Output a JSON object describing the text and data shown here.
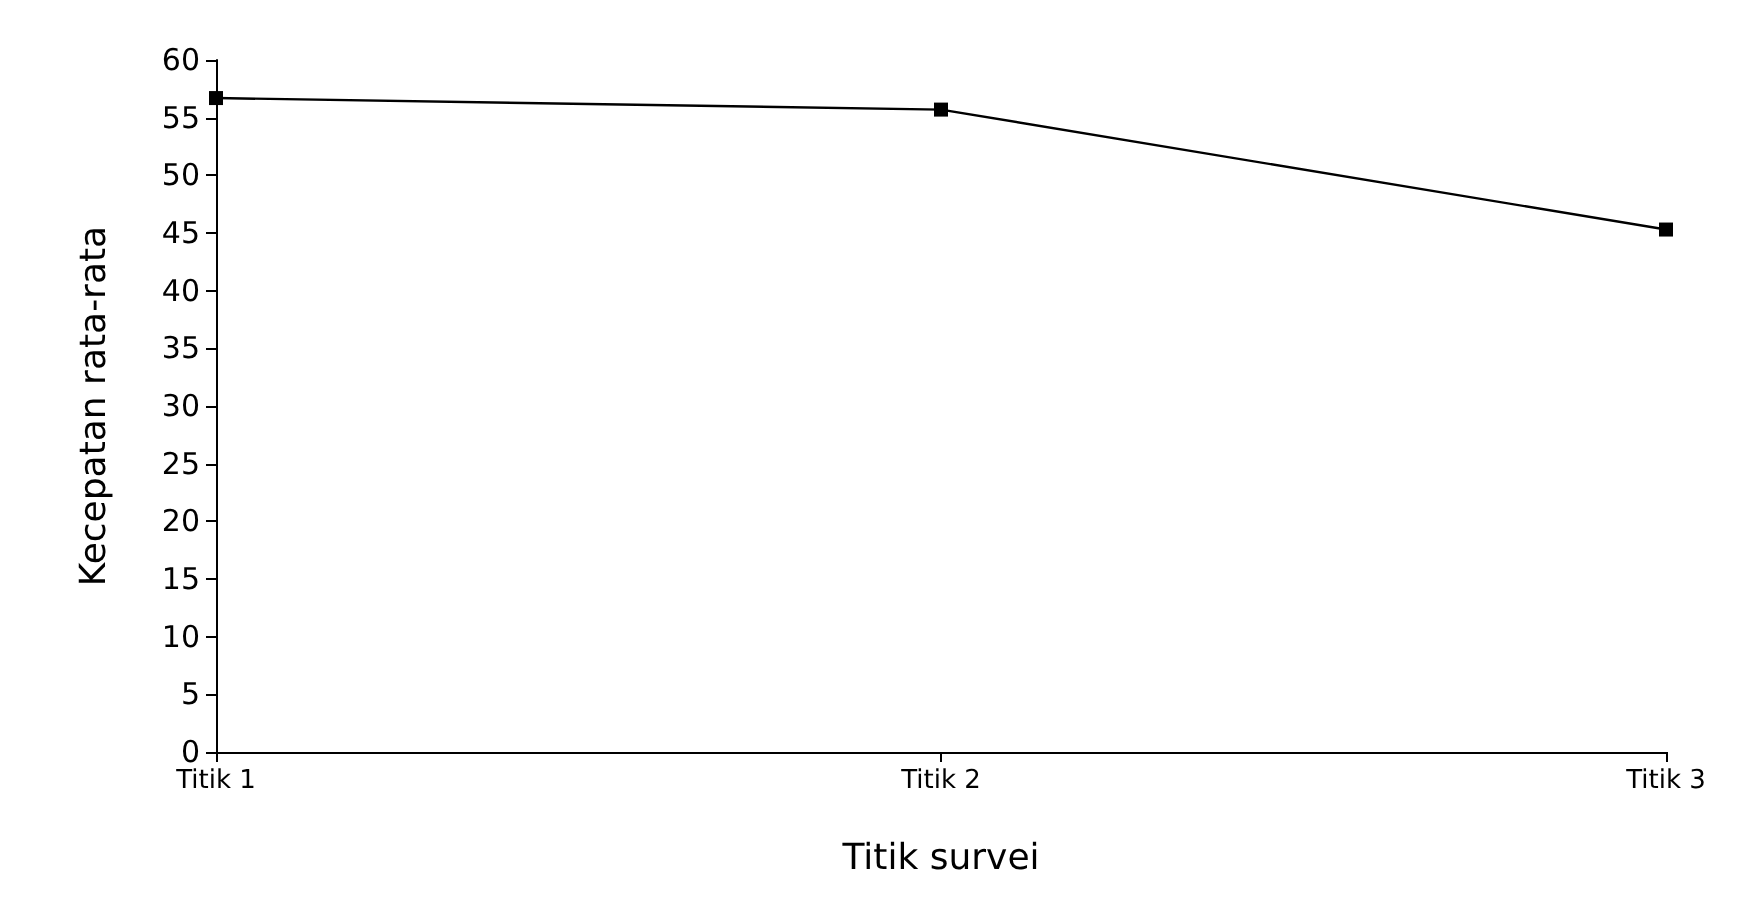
{
  "chart_data": {
    "type": "line",
    "xlabel": "Titik survei",
    "ylabel": "Kecepatan rata-rata",
    "categories": [
      "Titik 1",
      "Titik 2",
      "Titik 3"
    ],
    "series": [
      {
        "color": "#000000",
        "values": [
          56.7,
          55.7,
          45.3
        ]
      }
    ],
    "ylim": [
      0,
      60
    ],
    "yticks": [
      0,
      5,
      10,
      15,
      20,
      25,
      30,
      35,
      40,
      45,
      50,
      55,
      60
    ],
    "grid": false,
    "marker": "square",
    "line_style": "solid"
  }
}
